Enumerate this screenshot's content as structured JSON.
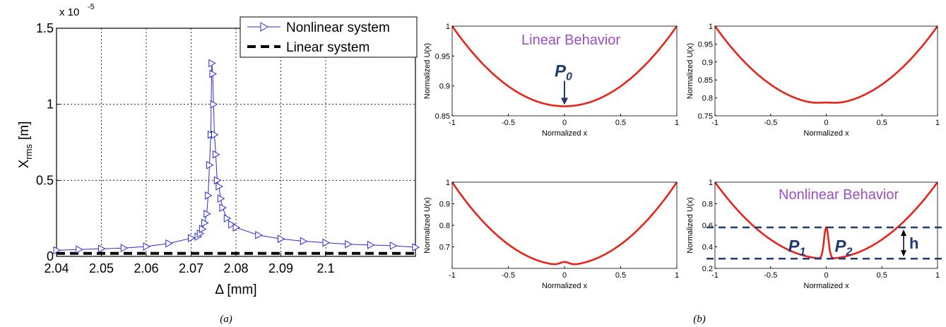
{
  "captions": {
    "a": "(a)",
    "b": "(b)"
  },
  "chart_data": [
    {
      "type": "line",
      "panel": "a",
      "xlabel": "Δ [mm]",
      "ylabel_main": "X",
      "ylabel_sub": "rms",
      "ylabel_unit": "[m]",
      "exponent_base": "x 10",
      "exponent_power": "-5",
      "xlim": [
        2.04,
        2.12
      ],
      "ylim": [
        0,
        1.5
      ],
      "x_ticks": [
        2.04,
        2.05,
        2.06,
        2.07,
        2.08,
        2.09,
        2.1
      ],
      "x_tick_labels": [
        "2.04",
        "2.05",
        "2.06",
        "2.07",
        "2.08",
        "2.09",
        "2.1"
      ],
      "y_ticks": [
        0,
        0.5,
        1,
        1.5
      ],
      "y_tick_labels": [
        "0",
        "0.5",
        "1",
        "1.5"
      ],
      "grid": true,
      "legend_position": "top-right",
      "series": [
        {
          "name": "Nonlinear system",
          "color": "#2b2bd9",
          "marker": "right-triangle",
          "x": [
            2.04,
            2.045,
            2.05,
            2.055,
            2.06,
            2.065,
            2.07,
            2.0715,
            2.072,
            2.0725,
            2.073,
            2.0735,
            2.0738,
            2.0741,
            2.0744,
            2.0746,
            2.0748,
            2.075,
            2.0752,
            2.0755,
            2.0758,
            2.0762,
            2.0766,
            2.077,
            2.078,
            2.079,
            2.08,
            2.085,
            2.09,
            2.095,
            2.1,
            2.105,
            2.11,
            2.115,
            2.12
          ],
          "y": [
            0.04,
            0.045,
            0.05,
            0.055,
            0.065,
            0.085,
            0.12,
            0.13,
            0.15,
            0.18,
            0.22,
            0.28,
            0.4,
            0.6,
            0.8,
            1.27,
            1.2,
            1.0,
            0.8,
            0.67,
            0.5,
            0.46,
            0.38,
            0.32,
            0.25,
            0.21,
            0.19,
            0.14,
            0.115,
            0.1,
            0.09,
            0.08,
            0.075,
            0.07,
            0.06
          ]
        },
        {
          "name": "Linear system",
          "color": "#000000",
          "dash": true,
          "x": [
            2.04,
            2.12
          ],
          "y": [
            0.02,
            0.02
          ]
        }
      ]
    },
    {
      "type": "line",
      "panel": "b-top-left",
      "xlabel": "Normalized x",
      "ylabel": "Normalized U(x)",
      "xlim": [
        -1,
        1
      ],
      "ylim": [
        0.85,
        1
      ],
      "x_tick_labels": [
        "-1",
        "-0.5",
        "0",
        "0.5",
        "1"
      ],
      "y_ticks": [
        0.85,
        0.9,
        0.95,
        1
      ],
      "y_tick_labels": [
        "0.85",
        "0.9",
        "0.95",
        "1"
      ],
      "color": "#e8231a",
      "min": 0.866,
      "annotation": "Linear Behavior",
      "point_label": "P",
      "point_sub": "0"
    },
    {
      "type": "line",
      "panel": "b-top-right",
      "xlabel": "Normalized x",
      "ylabel": "Normalized U(x)",
      "xlim": [
        -1,
        1
      ],
      "ylim": [
        0.75,
        1
      ],
      "x_tick_labels": [
        "-1",
        "-0.5",
        "0",
        "0.5",
        "1"
      ],
      "y_ticks": [
        0.75,
        0.8,
        0.85,
        0.9,
        0.95,
        1
      ],
      "y_tick_labels": [
        "0.75",
        "0.8",
        "0.85",
        "0.9",
        "0.95",
        "1"
      ],
      "color": "#e8231a",
      "min": 0.783,
      "bump_height": 0.004,
      "bump_width": 0.07
    },
    {
      "type": "line",
      "panel": "b-bottom-left",
      "xlabel": "Normalized x",
      "ylabel": "Normalized U(x)",
      "xlim": [
        -1,
        1
      ],
      "ylim": [
        0.6,
        1
      ],
      "x_tick_labels": [
        "-1",
        "-0.5",
        "0",
        "0.5",
        "1"
      ],
      "y_ticks": [
        0.7,
        0.8,
        0.9,
        1
      ],
      "y_tick_labels": [
        "0.7",
        "0.8",
        "0.9",
        "1"
      ],
      "color": "#e8231a",
      "min": 0.615,
      "bump_height": 0.015,
      "bump_width": 0.04
    },
    {
      "type": "line",
      "panel": "b-bottom-right",
      "xlabel": "Normalized x",
      "ylabel": "Normalized U(x)",
      "xlim": [
        -1,
        1
      ],
      "ylim": [
        0.2,
        1
      ],
      "x_tick_labels": [
        "-1",
        "-0.5",
        "0",
        "0.5",
        "1"
      ],
      "y_ticks": [
        0.2,
        0.4,
        0.6,
        0.8,
        1
      ],
      "y_tick_labels": [
        "0.2",
        "0.4",
        "0.6",
        "0.8",
        "1"
      ],
      "color": "#e8231a",
      "min": 0.29,
      "bump_height": 0.29,
      "bump_width": 0.02,
      "annotation": "Nonlinear Behavior",
      "p1_label": "P",
      "p1_sub": "1",
      "p2_label": "P",
      "p2_sub": "2",
      "h_label": "h",
      "dashed_levels": [
        0.58,
        0.29
      ],
      "dashed_color": "#1f3b74"
    }
  ]
}
